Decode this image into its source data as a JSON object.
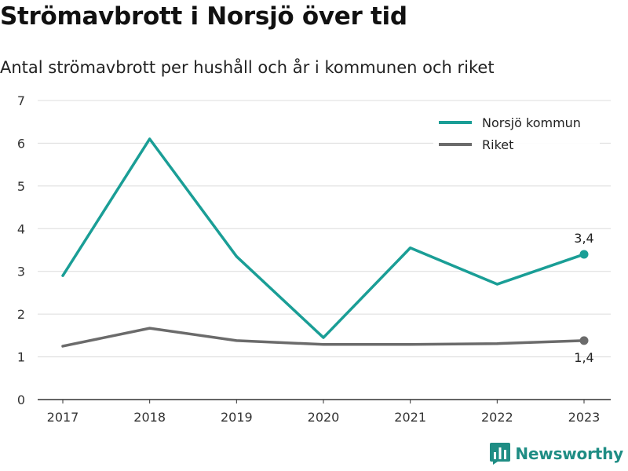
{
  "brand": {
    "name": "Newsworthy",
    "color": "#1f8d84"
  },
  "chart_data": {
    "type": "line",
    "title": "Strömavbrott i Norsjö över tid",
    "subtitle": "Antal strömavbrott per hushåll och år i kommunen och riket",
    "xlabel": "",
    "ylabel": "",
    "categories": [
      "2017",
      "2018",
      "2019",
      "2020",
      "2021",
      "2022",
      "2023"
    ],
    "ylim": [
      0,
      7
    ],
    "yticks": [
      "0",
      "1",
      "2",
      "3",
      "4",
      "5",
      "6",
      "7"
    ],
    "grid": true,
    "legend_position": "top-right",
    "series": [
      {
        "name": "Norsjö kommun",
        "color": "#1a9e96",
        "values": [
          2.9,
          6.1,
          3.35,
          1.45,
          3.55,
          2.7,
          3.4
        ],
        "end_label": "3,4",
        "end_label_position": "above"
      },
      {
        "name": "Riket",
        "color": "#6b6b6b",
        "values": [
          1.25,
          1.67,
          1.38,
          1.29,
          1.29,
          1.31,
          1.38
        ],
        "end_label": "1,4",
        "end_label_position": "below"
      }
    ]
  }
}
